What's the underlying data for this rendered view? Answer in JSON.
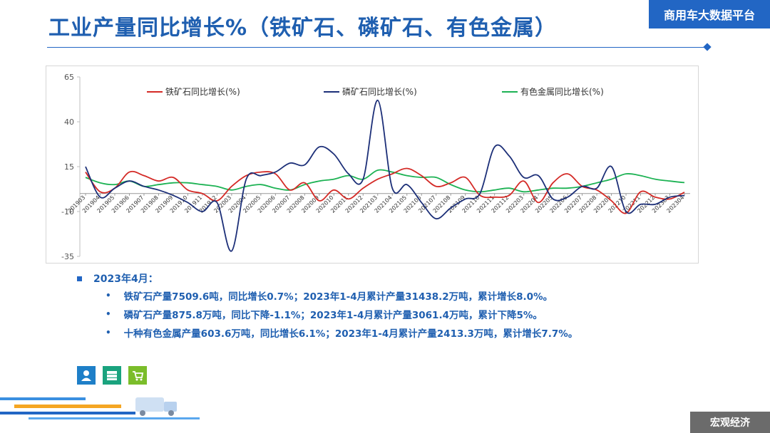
{
  "header": {
    "title": "工业产量同比增长%（铁矿石、磷矿石、有色金属）",
    "brand": "商用车大数据平台"
  },
  "chart_data": {
    "type": "line",
    "ylim": [
      -35,
      65
    ],
    "yticks": [
      -35,
      -10,
      15,
      40,
      65
    ],
    "legend_position": "top",
    "categories": [
      "201903",
      "201904",
      "201905",
      "201906",
      "201907",
      "201908",
      "201909",
      "201910",
      "201911",
      "201912",
      "202003",
      "202004",
      "202005",
      "202006",
      "202007",
      "202008",
      "202009",
      "202010",
      "202011",
      "202012",
      "202103",
      "202104",
      "202105",
      "202106",
      "202107",
      "202108",
      "202109",
      "202110",
      "202111",
      "202112",
      "202203",
      "202204",
      "202205",
      "202206",
      "202207",
      "202208",
      "202209",
      "202210",
      "202211",
      "202212",
      "202303",
      "202304"
    ],
    "series": [
      {
        "name": "铁矿石同比增长(%)",
        "color": "#d42a26",
        "values": [
          12,
          1,
          3,
          12,
          10,
          7,
          9,
          2,
          0,
          -4,
          4,
          10,
          12,
          11,
          2,
          6,
          -4,
          2,
          -3,
          3,
          8,
          11,
          14,
          10,
          4,
          6,
          9,
          -1,
          -2,
          -1,
          7,
          -5,
          6,
          11,
          4,
          2,
          -4,
          -11,
          1,
          -2,
          -3,
          0.7
        ]
      },
      {
        "name": "磷矿石同比增长(%)",
        "color": "#1c2f78",
        "values": [
          15,
          -2,
          3,
          7,
          4,
          2,
          -1,
          -5,
          -10,
          -5,
          -32,
          8,
          10,
          12,
          17,
          16,
          26,
          22,
          11,
          8,
          52,
          3,
          5,
          -5,
          -14,
          -8,
          -3,
          0,
          26,
          21,
          9,
          10,
          -3,
          -2,
          4,
          3,
          15,
          -10,
          -6,
          -6,
          -2,
          -1.1
        ]
      },
      {
        "name": "有色金属同比增长(%)",
        "color": "#1cb253",
        "values": [
          9,
          6,
          5,
          7,
          4,
          5,
          6,
          6,
          5,
          4,
          2,
          4,
          5,
          3,
          2,
          5,
          7,
          8,
          10,
          8,
          13,
          12,
          10,
          9,
          9,
          5,
          2,
          1,
          2,
          3,
          1,
          2,
          3,
          3,
          4,
          6,
          8,
          11,
          10,
          8,
          7,
          6.1
        ]
      }
    ]
  },
  "notes": {
    "heading": "2023年4月：",
    "items": [
      "铁矿石产量7509.6吨，同比增长0.7%；2023年1-4月累计产量31438.2万吨，累计增长8.0%。",
      "磷矿石产量875.8万吨，同比下降-1.1%；2023年1-4月累计产量3061.4万吨，累计下降5%。",
      "十种有色金属产量603.6万吨，同比增长6.1%；2023年1-4月累计产量2413.3万吨，累计增长7.7%。"
    ]
  },
  "icons": [
    {
      "name": "worker-icon",
      "color": "#1e7fc8"
    },
    {
      "name": "cash-icon",
      "color": "#1aa37e"
    },
    {
      "name": "cart-icon",
      "color": "#7bbd2a"
    }
  ],
  "footer": {
    "tag": "宏观经济"
  }
}
